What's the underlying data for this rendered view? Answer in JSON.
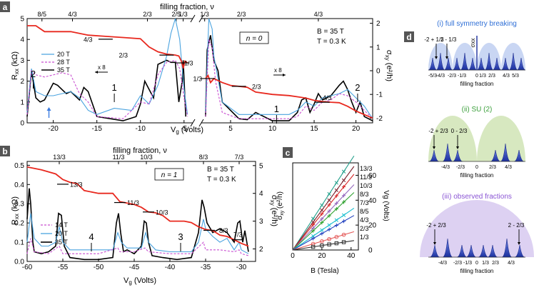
{
  "chart_data": [
    {
      "panel": "a",
      "type": "line",
      "title": "filling fraction, ν",
      "xlabel": "V_g (Volts)",
      "ylabel_left": "R_xx (kΩ)",
      "ylabel_right": "σ_xy (e²/h)",
      "xlim": [
        -23,
        22
      ],
      "x_axis_break": [
        -4,
        1.5
      ],
      "xticks": [
        "-20",
        "-15",
        "-10",
        "-5",
        "5",
        "10",
        "15",
        "20"
      ],
      "yticks_left": [
        "0",
        "1",
        "2",
        "3",
        "4",
        "5"
      ],
      "yticks_right": [
        "-2",
        "-1",
        "0",
        "1",
        "2"
      ],
      "top_ticks": [
        "8/5",
        "4/3",
        "2/3",
        "2/5",
        "1/3",
        "1/3",
        "2/3",
        "4/3"
      ],
      "legend": [
        "20 T",
        "28 T",
        "35 T"
      ],
      "conditions": [
        "B = 35 T",
        "T = 0.3 K"
      ],
      "n_label": "n = 0",
      "annotations": [
        "4/3",
        "2/3",
        "1/3",
        "1/3",
        "2/3",
        "4/3",
        "2",
        "1",
        "1",
        "2",
        "x 8",
        "x 8"
      ],
      "series": [
        {
          "name": "35 T",
          "color": "#000000",
          "x": [
            -23,
            -22.5,
            -22,
            -21.5,
            -21,
            -20.5,
            -20,
            -19.5,
            -19,
            -18.5,
            -18,
            -17,
            -16.5,
            -16,
            -15,
            -12,
            -10.5,
            -10,
            -9.5,
            -9,
            -8.5,
            -8,
            -7,
            -6.5,
            -6,
            -5.6,
            -5.2,
            -5.1,
            -4.8,
            2,
            2.2,
            2.6,
            3,
            3.5,
            4,
            6,
            7,
            8,
            10,
            12,
            13,
            13.5,
            14,
            14.5,
            15,
            15.5,
            16,
            17,
            18,
            18.5,
            19,
            19.5,
            20,
            20.5,
            21,
            22
          ],
          "values": [
            0.3,
            2.5,
            1.2,
            1.0,
            1.1,
            1.5,
            1.9,
            1.8,
            1.6,
            1.4,
            1.5,
            1.1,
            1.7,
            1.5,
            0.3,
            0.1,
            0.3,
            0.9,
            2.0,
            1.6,
            1.2,
            2.8,
            3.0,
            2.9,
            2.9,
            1.0,
            2.0,
            3.0,
            0.3,
            0.3,
            3.5,
            4.2,
            3.0,
            2.5,
            1.0,
            0.2,
            0.15,
            0.5,
            0.1,
            0.1,
            0.5,
            1.1,
            1.2,
            0.5,
            0.9,
            1.4,
            1.1,
            1.3,
            1.8,
            2.0,
            1.6,
            1.0,
            0.5,
            1.0,
            0.3,
            0.1
          ]
        },
        {
          "name": "20 T",
          "color": "#4aa3df",
          "x": [
            -23,
            -22.5,
            -22,
            -21,
            -20,
            -19,
            -18,
            -17,
            -16,
            -15,
            -13,
            -11,
            -10,
            -9,
            -8,
            -7,
            -6.5,
            -6,
            -5.5,
            -5,
            -4.6,
            2,
            2.4,
            2.8,
            3,
            4,
            6,
            8,
            10,
            12,
            13,
            14,
            15,
            16,
            17,
            18,
            19,
            20,
            21,
            22
          ],
          "values": [
            0.5,
            2.6,
            1.5,
            1.3,
            1.3,
            1.4,
            1.5,
            1.2,
            0.6,
            0.4,
            0.7,
            0.6,
            1.3,
            0.9,
            1.8,
            3.2,
            4.3,
            5.0,
            4.0,
            1.6,
            0.4,
            0.5,
            5.0,
            4.5,
            3.2,
            1.0,
            0.4,
            0.4,
            0.4,
            0.4,
            0.6,
            1.0,
            0.8,
            1.2,
            1.3,
            1.4,
            1.6,
            1.2,
            0.8,
            0.2
          ]
        },
        {
          "name": "28 T",
          "color": "#c94fd1",
          "x": [
            -23,
            -22.5,
            -22,
            -21,
            -20,
            -19,
            -18,
            -17,
            -16,
            -15,
            -12,
            -10,
            -9,
            -8,
            -7,
            -6,
            -5.5,
            -5,
            -4.6,
            2,
            2.4,
            2.8,
            3.2,
            4,
            6,
            8,
            10,
            12,
            13,
            14,
            15,
            16,
            17,
            18,
            19,
            20,
            21,
            22
          ],
          "values": [
            0.4,
            2.5,
            2.3,
            2.2,
            2.3,
            2.4,
            2.3,
            1.4,
            1.0,
            0.3,
            0.2,
            1.0,
            0.9,
            2.3,
            2.9,
            3.0,
            2.6,
            1.2,
            0.3,
            0.3,
            4.0,
            3.6,
            2.0,
            0.5,
            0.2,
            0.2,
            0.2,
            0.2,
            0.3,
            0.8,
            0.6,
            1.0,
            1.1,
            1.4,
            1.3,
            1.0,
            0.6,
            0.2
          ]
        },
        {
          "name": "σxy 35 T",
          "color": "#e8281e",
          "axis": "right",
          "x": [
            -23,
            -22,
            -21,
            -18,
            -16,
            -14,
            -12,
            -10,
            -9,
            -8,
            -7,
            -6,
            -5.6,
            -5.3,
            -5.1,
            -4.9,
            -4.6,
            2,
            2.3,
            2.6,
            3,
            4,
            5,
            6,
            7,
            8,
            10,
            12,
            13,
            14,
            15,
            16,
            17,
            18,
            19,
            20,
            21,
            22
          ],
          "values": [
            1.9,
            1.9,
            1.65,
            1.65,
            1.5,
            1.45,
            1.4,
            1.35,
            1.0,
            0.8,
            0.7,
            0.66,
            0.62,
            0.4,
            0.1,
            0.4,
            0.33,
            -0.33,
            -0.2,
            -0.5,
            -0.33,
            -0.5,
            -0.62,
            -0.66,
            -0.7,
            -0.9,
            -1.0,
            -1.05,
            -1.1,
            -1.15,
            -1.25,
            -1.3,
            -1.33,
            -1.35,
            -1.5,
            -1.7,
            -1.85,
            -2.0
          ]
        }
      ]
    },
    {
      "panel": "b",
      "type": "line",
      "title": "filling fraction, ν",
      "xlabel": "V_g (Volts)",
      "ylabel_left": "R_xx (kΩ)",
      "ylabel_right": "σ_xy (e²/h)",
      "xlim": [
        -60,
        -28
      ],
      "xticks": [
        "-60",
        "-55",
        "-50",
        "-45",
        "-40",
        "-35",
        "-30"
      ],
      "yticks_left": [
        "0.0",
        "0.1",
        "0.2",
        "0.3",
        "0.4",
        "0.5"
      ],
      "yticks_right": [
        "2",
        "3",
        "4",
        "5"
      ],
      "top_ticks": [
        "13/3",
        "11/3",
        "10/3",
        "8/3",
        "7/3"
      ],
      "legend": [
        "14 T",
        "20 T",
        "35 T"
      ],
      "conditions": [
        "B = 35 T",
        "T = 0.3 K"
      ],
      "n_label": "n = 1",
      "annotations": [
        "13/3",
        "11/3",
        "10/3",
        "8/3",
        "7/3",
        "4",
        "3"
      ],
      "series": [
        {
          "name": "35 T",
          "color": "#000000",
          "x": [
            -60,
            -59.7,
            -59.5,
            -59.2,
            -59,
            -58,
            -57,
            -56,
            -55.6,
            -55.2,
            -54.8,
            -54,
            -52,
            -50,
            -48,
            -47.5,
            -47.2,
            -46.9,
            -46.5,
            -46,
            -45,
            -44,
            -43.6,
            -43.3,
            -43,
            -42.5,
            -41,
            -39,
            -37,
            -36,
            -35.5,
            -35.2,
            -34.8,
            -34,
            -33,
            -32,
            -31,
            -30.5,
            -30.2,
            -29.8,
            -29.5,
            -29
          ],
          "values": [
            0.22,
            0.38,
            0.3,
            0.1,
            0.05,
            0.04,
            0.05,
            0.08,
            0.25,
            0.24,
            0.08,
            0.02,
            0.01,
            0.01,
            0.02,
            0.2,
            0.25,
            0.15,
            0.05,
            0.06,
            0.04,
            0.08,
            0.21,
            0.2,
            0.1,
            0.03,
            0.02,
            0.01,
            0.02,
            0.15,
            0.32,
            0.28,
            0.2,
            0.15,
            0.17,
            0.15,
            0.1,
            0.2,
            0.21,
            0.1,
            0.16,
            0.05
          ]
        },
        {
          "name": "20 T",
          "color": "#4aa3df",
          "x": [
            -60,
            -59.5,
            -59,
            -58,
            -57,
            -56,
            -55.5,
            -55,
            -54,
            -52,
            -50,
            -48,
            -47.3,
            -46.8,
            -46,
            -44,
            -43.4,
            -43,
            -42,
            -40,
            -37,
            -36,
            -35.3,
            -35,
            -34,
            -33,
            -32,
            -31,
            -30.3,
            -30,
            -29
          ],
          "values": [
            0.1,
            0.25,
            0.12,
            0.08,
            0.08,
            0.1,
            0.18,
            0.1,
            0.06,
            0.06,
            0.06,
            0.06,
            0.15,
            0.1,
            0.07,
            0.07,
            0.15,
            0.1,
            0.06,
            0.05,
            0.05,
            0.1,
            0.22,
            0.17,
            0.13,
            0.1,
            0.12,
            0.06,
            0.1,
            0.06,
            0.04
          ]
        },
        {
          "name": "14 T",
          "color": "#c94fd1",
          "x": [
            -60,
            -59.5,
            -59,
            -57,
            -55.5,
            -55,
            -53,
            -50,
            -47.3,
            -47,
            -45,
            -43.5,
            -43,
            -40,
            -37,
            -35.3,
            -35,
            -33,
            -31,
            -30.3,
            -30,
            -29
          ],
          "values": [
            0.04,
            0.12,
            0.05,
            0.04,
            0.08,
            0.04,
            0.04,
            0.04,
            0.07,
            0.05,
            0.05,
            0.07,
            0.05,
            0.04,
            0.04,
            0.1,
            0.06,
            0.06,
            0.05,
            0.06,
            0.04,
            0.03
          ]
        },
        {
          "name": "σxy 35 T",
          "color": "#e8281e",
          "axis": "right",
          "x": [
            -60,
            -58,
            -56,
            -55,
            -54,
            -53,
            -52,
            -50,
            -49,
            -48,
            -47,
            -46,
            -45,
            -44,
            -43,
            -42,
            -41,
            -40,
            -39,
            -38,
            -37,
            -36,
            -35,
            -34,
            -33,
            -32,
            -31,
            -30,
            -29
          ],
          "values": [
            4.95,
            4.85,
            4.7,
            4.5,
            4.4,
            4.35,
            4.1,
            4.0,
            4.0,
            4.0,
            3.7,
            3.65,
            3.6,
            3.5,
            3.33,
            3.3,
            3.2,
            3.0,
            3.0,
            3.0,
            2.95,
            2.8,
            2.7,
            2.66,
            2.5,
            2.45,
            2.33,
            2.2,
            2.1
          ]
        }
      ]
    },
    {
      "panel": "c",
      "type": "line",
      "xlabel": "B (Tesla)",
      "ylabel_left": "σ_xy (e²/h)",
      "ylabel_right": "Vg (Volts)",
      "xlim": [
        0,
        45
      ],
      "ylim": [
        0,
        70
      ],
      "xticks": [
        "0",
        "20",
        "40"
      ],
      "yticks_right": [
        "0",
        "20",
        "40",
        "60"
      ],
      "series": [
        {
          "name": "13/3",
          "color": "#1f9e89",
          "slope": 1.8,
          "marker": "x",
          "B": [
            14,
            20,
            25,
            30,
            35
          ]
        },
        {
          "name": "11/3",
          "color": "#7a1f2b",
          "slope": 1.6,
          "marker": "x",
          "B": [
            14,
            20,
            25,
            30,
            35
          ]
        },
        {
          "name": "10/3",
          "color": "#d62728",
          "slope": 1.45,
          "marker": "+",
          "B": [
            14,
            20,
            25,
            30,
            35
          ]
        },
        {
          "name": "8/3",
          "color": "#9467bd",
          "slope": 1.25,
          "marker": "+",
          "B": [
            14,
            20,
            25,
            30,
            35
          ]
        },
        {
          "name": "7/3",
          "color": "#2ca02c",
          "slope": 1.1,
          "marker": "+",
          "B": [
            14,
            20,
            25,
            30,
            35
          ]
        },
        {
          "name": "8/5",
          "color": "#17becf",
          "slope": 0.8,
          "marker": "x",
          "B": [
            14,
            20,
            25,
            30,
            35
          ]
        },
        {
          "name": "4/3",
          "color": "#1f3fbf",
          "slope": 0.66,
          "marker": "+",
          "B": [
            14,
            20,
            25,
            30,
            35
          ]
        },
        {
          "name": "2/3",
          "color": "#e45756",
          "slope": 0.35,
          "marker": "o",
          "B": [
            14,
            20,
            25,
            30,
            35
          ]
        },
        {
          "name": "1/3",
          "color": "#2f2f2f",
          "slope": 0.18,
          "marker": "s",
          "B": [
            14,
            20,
            25,
            30,
            35
          ]
        }
      ]
    }
  ],
  "panel_d": {
    "label": "d",
    "axis_label": "σxx",
    "sections": [
      {
        "title": "(i) full symmetry breaking",
        "title_color": "#2f6fd6",
        "tick_labels": [
          "-5/3",
          "-4/3",
          "-2/3",
          "-1/3",
          "0",
          "1/3",
          "2/3",
          "4/3",
          "5/3"
        ],
        "arrow_labels": [
          "-2 + 1/3",
          "1 - 1/3"
        ],
        "xlabel": "filling fraction"
      },
      {
        "title": "(ii) SU (2)",
        "title_color": "#3ca03c",
        "tick_labels": [
          "-4/3",
          "-2/3",
          "0",
          "2/3",
          "4/3"
        ],
        "arrow_labels": [
          "-2 + 2/3",
          "0 - 2/3"
        ],
        "xlabel": "filling fraction"
      },
      {
        "title": "(iii) observed fractions",
        "title_color": "#8a55d4",
        "tick_labels": [
          "-4/3",
          "-2/3",
          "-1/3",
          "0",
          "1/3",
          "2/3",
          "4/3"
        ],
        "arrow_labels": [
          "-2 + 2/3",
          "2 - 2/3"
        ],
        "xlabel": "filling fraction"
      }
    ]
  }
}
